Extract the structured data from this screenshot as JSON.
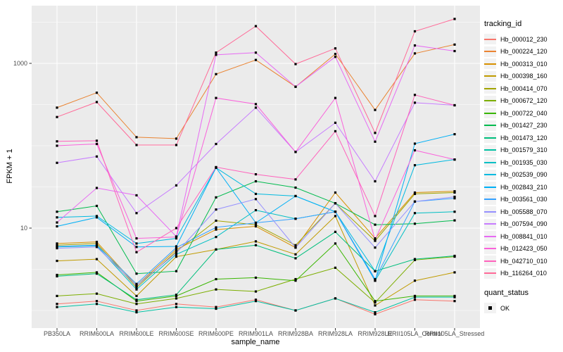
{
  "figure": {
    "background": "#FFFFFF",
    "panel_background": "#EBEBEB",
    "grid_color": "#FFFFFF",
    "axis_text_color": "#4D4D4D",
    "tick_color": "#333333"
  },
  "chart_data": {
    "type": "line",
    "title": "",
    "xlabel": "sample_name",
    "ylabel": "FPKM + 1",
    "y_scale": "log10",
    "y_tick_labels": [
      "1000",
      "10"
    ],
    "y_tick_values": [
      1000,
      10
    ],
    "y_minor_values": [
      1,
      3.162,
      31.62,
      100,
      316.2,
      3162
    ],
    "ylim": [
      0.75,
      5000
    ],
    "grid": "on",
    "legend_position": "right",
    "point_shape": "filled-square",
    "point_color": "#000000",
    "categories": [
      "PB350LA",
      "RRIM600LA",
      "RRIM600LE",
      "RRIM600SE",
      "RRIM600PE",
      "RRIM901LA",
      "RRIM928BA",
      "RRIM928LA",
      "RRIM928LE",
      "RRII105LA_Control",
      "RRII105LA_Stressed"
    ],
    "series": [
      {
        "name": "Hb_000012_230",
        "color": "#F8766D",
        "values": [
          1.2,
          1.3,
          1.0,
          1.2,
          1.1,
          1.35,
          1.0,
          1.4,
          0.9,
          1.35,
          1.3
        ]
      },
      {
        "name": "Hb_000224_120",
        "color": "#EA8331",
        "values": [
          290,
          440,
          127,
          122,
          740,
          1100,
          520,
          1300,
          272,
          1320,
          1690
        ]
      },
      {
        "name": "Hb_000313_010",
        "color": "#D89000",
        "values": [
          6.5,
          6.8,
          2.0,
          5.5,
          9.6,
          10.5,
          5.8,
          27,
          7.5,
          27,
          28
        ]
      },
      {
        "name": "Hb_000398_160",
        "color": "#C09B00",
        "values": [
          4.0,
          4.2,
          1.5,
          4.5,
          5.5,
          6.9,
          4.8,
          14,
          1.15,
          2.3,
          2.9
        ]
      },
      {
        "name": "Hb_000414_070",
        "color": "#A3A500",
        "values": [
          6.2,
          6.5,
          1.9,
          5.2,
          12.3,
          11.0,
          6.2,
          20,
          7.0,
          26,
          27
        ]
      },
      {
        "name": "Hb_000672_120",
        "color": "#7CAE00",
        "values": [
          1.5,
          1.6,
          1.2,
          1.4,
          1.8,
          1.7,
          2.4,
          3.3,
          1.25,
          4.1,
          4.5
        ]
      },
      {
        "name": "Hb_000722_040",
        "color": "#39B600",
        "values": [
          2.7,
          2.9,
          1.3,
          1.5,
          2.4,
          2.5,
          2.3,
          6.5,
          1.3,
          1.5,
          1.5
        ]
      },
      {
        "name": "Hb_001427_230",
        "color": "#00BB4E",
        "values": [
          15.8,
          18.6,
          2.8,
          3.0,
          23.6,
          37,
          31,
          20,
          11,
          11.3,
          12.4
        ]
      },
      {
        "name": "Hb_001473_120",
        "color": "#00BF7D",
        "values": [
          2.6,
          2.8,
          1.35,
          1.55,
          5.5,
          6.2,
          4.3,
          9.0,
          3.0,
          4.2,
          4.6
        ]
      },
      {
        "name": "Hb_001579_310",
        "color": "#00C1A3",
        "values": [
          1.1,
          1.2,
          0.95,
          1.1,
          1.05,
          1.3,
          1.0,
          1.4,
          0.95,
          1.45,
          1.45
        ]
      },
      {
        "name": "Hb_001935_030",
        "color": "#00BFC4",
        "values": [
          5.9,
          6.1,
          1.8,
          4.8,
          7.8,
          16.5,
          13,
          15.8,
          2.3,
          15.2,
          15.8
        ]
      },
      {
        "name": "Hb_002539_090",
        "color": "#00BAE0",
        "values": [
          13.5,
          14,
          6.5,
          7.5,
          54,
          26,
          24.5,
          15.8,
          3.0,
          58,
          68
        ]
      },
      {
        "name": "Hb_002843_210",
        "color": "#00B0F6",
        "values": [
          10.5,
          13.5,
          5.9,
          6.0,
          54,
          11.6,
          24.5,
          15.8,
          2.3,
          106,
          138
        ]
      },
      {
        "name": "Hb_003561_030",
        "color": "#35A2FF",
        "values": [
          6.0,
          6.2,
          2.1,
          5.8,
          10.2,
          11.6,
          13,
          15.8,
          2.4,
          21,
          23
        ]
      },
      {
        "name": "Hb_005588_070",
        "color": "#9590FF",
        "values": [
          5.7,
          5.9,
          2.0,
          5.0,
          16.8,
          22.5,
          5.8,
          20,
          5.8,
          21,
          24
        ]
      },
      {
        "name": "Hb_007594_090",
        "color": "#C77CFF",
        "values": [
          62,
          74,
          15.2,
          33,
          105,
          290,
          84,
          190,
          37,
          333,
          310
        ]
      },
      {
        "name": "Hb_008841_010",
        "color": "#E76BF3",
        "values": [
          11.7,
          30.7,
          25,
          7.9,
          1270,
          1350,
          520,
          1200,
          112,
          1650,
          1410
        ]
      },
      {
        "name": "Hb_012423_050",
        "color": "#FA62DB",
        "values": [
          100,
          105,
          7.5,
          7.8,
          380,
          320,
          84,
          380,
          7.2,
          88,
          68
        ]
      },
      {
        "name": "Hb_042710_010",
        "color": "#FF62BC",
        "values": [
          113,
          115,
          5.1,
          10,
          55,
          45,
          39,
          150,
          14,
          414,
          310
        ]
      },
      {
        "name": "Hb_116264_010",
        "color": "#FF6A98",
        "values": [
          223,
          339,
          102,
          102,
          1350,
          2830,
          980,
          1520,
          143,
          2450,
          3460
        ]
      }
    ]
  },
  "legend": {
    "tracking_title": "tracking_id",
    "quant_title": "quant_status",
    "quant_item": {
      "label": "OK",
      "marker_color": "#000000"
    }
  }
}
